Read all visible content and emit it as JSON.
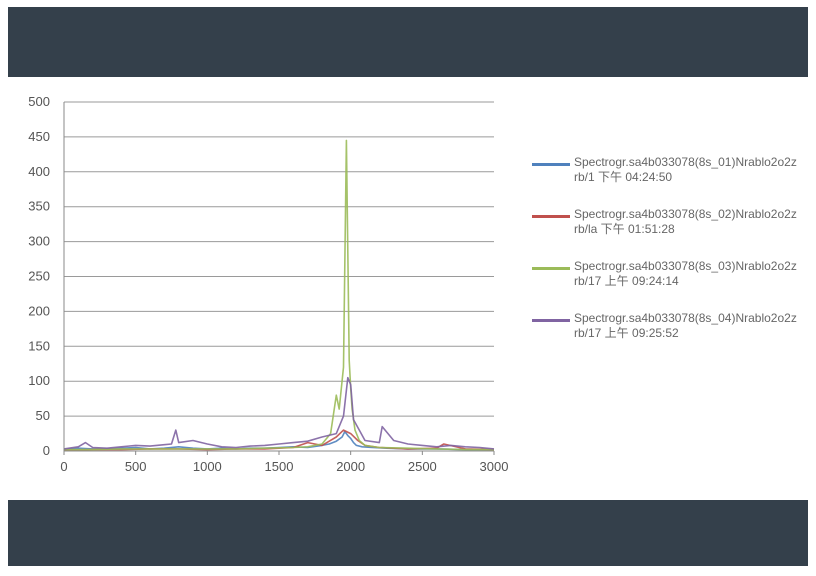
{
  "chart_data": {
    "type": "line",
    "title": "",
    "xlabel": "",
    "ylabel": "",
    "xlim": [
      0,
      3000
    ],
    "ylim": [
      0,
      500
    ],
    "x_ticks": [
      "0",
      "500",
      "1000",
      "1500",
      "2000",
      "2500",
      "3000"
    ],
    "y_ticks": [
      "0",
      "50",
      "100",
      "150",
      "200",
      "250",
      "300",
      "350",
      "400",
      "450",
      "500"
    ],
    "grid": true,
    "legend_position": "right",
    "series": [
      {
        "name": "Spectrogr.sa4b033078(8s_01)Nrablo2o2zrb/1 下午 04:24:50",
        "color": "#4f81bd",
        "x": [
          0,
          100,
          200,
          300,
          400,
          500,
          600,
          700,
          800,
          900,
          1000,
          1100,
          1200,
          1300,
          1400,
          1500,
          1600,
          1700,
          1800,
          1850,
          1900,
          1940,
          1960,
          1980,
          2000,
          2020,
          2040,
          2080,
          2150,
          2250,
          2400,
          2600,
          2800,
          3000
        ],
        "y": [
          2,
          4,
          3,
          3,
          4,
          5,
          3,
          4,
          6,
          4,
          3,
          4,
          3,
          4,
          4,
          5,
          6,
          5,
          8,
          10,
          14,
          20,
          28,
          22,
          18,
          12,
          8,
          6,
          5,
          4,
          3,
          3,
          2,
          2
        ]
      },
      {
        "name": "Spectrogr.sa4b033078(8s_02)Nrablo2o2zrb/la 下午 01:51:28",
        "color": "#c0504d",
        "x": [
          0,
          200,
          400,
          600,
          800,
          1000,
          1200,
          1400,
          1600,
          1700,
          1800,
          1850,
          1900,
          1950,
          2000,
          2050,
          2100,
          2200,
          2400,
          2600,
          2650,
          2800,
          3000
        ],
        "y": [
          1,
          2,
          2,
          3,
          3,
          2,
          3,
          3,
          5,
          12,
          8,
          14,
          20,
          30,
          25,
          15,
          8,
          5,
          3,
          4,
          10,
          3,
          2
        ]
      },
      {
        "name": "Spectrogr.sa4b033078(8s_03)Nrablo2o2zrb/17 上午 09:24:14",
        "color": "#9bbb59",
        "x": [
          0,
          200,
          400,
          600,
          800,
          1000,
          1200,
          1400,
          1600,
          1700,
          1800,
          1860,
          1900,
          1920,
          1950,
          1970,
          1990,
          2000,
          2010,
          2030,
          2060,
          2100,
          2200,
          2400,
          2600,
          2800,
          3000
        ],
        "y": [
          2,
          2,
          3,
          3,
          3,
          3,
          3,
          4,
          5,
          6,
          10,
          25,
          80,
          60,
          120,
          445,
          130,
          90,
          60,
          30,
          15,
          8,
          5,
          4,
          3,
          2,
          2
        ]
      },
      {
        "name": "Spectrogr.sa4b033078(8s_04)Nrablo2o2zrb/17 上午 09:25:52",
        "color": "#8064a2",
        "x": [
          0,
          100,
          150,
          200,
          300,
          400,
          500,
          600,
          700,
          750,
          780,
          800,
          900,
          1000,
          1100,
          1200,
          1300,
          1400,
          1500,
          1600,
          1700,
          1800,
          1900,
          1950,
          1980,
          2000,
          2020,
          2060,
          2100,
          2200,
          2220,
          2300,
          2400,
          2500,
          2600,
          2700,
          2800,
          2900,
          3000
        ],
        "y": [
          3,
          6,
          12,
          5,
          4,
          6,
          8,
          7,
          9,
          10,
          30,
          12,
          15,
          10,
          6,
          5,
          7,
          8,
          10,
          12,
          14,
          20,
          25,
          50,
          105,
          95,
          45,
          30,
          15,
          12,
          35,
          15,
          10,
          8,
          6,
          8,
          6,
          5,
          3
        ]
      }
    ]
  }
}
